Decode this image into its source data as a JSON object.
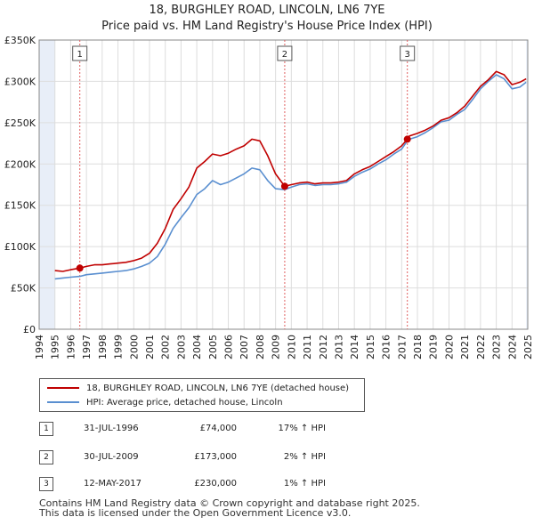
{
  "header": {
    "title": "18, BURGHLEY ROAD, LINCOLN, LN6 7YE",
    "subtitle": "Price paid vs. HM Land Registry's House Price Index (HPI)"
  },
  "chart_data": {
    "type": "line",
    "title": "18, BURGHLEY ROAD, LINCOLN, LN6 7YE",
    "subtitle": "Price paid vs. HM Land Registry's House Price Index (HPI)",
    "xlabel": "",
    "ylabel": "",
    "xlim": [
      1994,
      2025
    ],
    "ylim": [
      0,
      350000
    ],
    "xticks": [
      1994,
      1995,
      1996,
      1997,
      1998,
      1999,
      2000,
      2001,
      2002,
      2003,
      2004,
      2005,
      2006,
      2007,
      2008,
      2009,
      2010,
      2011,
      2012,
      2013,
      2014,
      2015,
      2016,
      2017,
      2018,
      2019,
      2020,
      2021,
      2022,
      2023,
      2024,
      2025
    ],
    "yticks": [
      {
        "value": 0,
        "label": "£0"
      },
      {
        "value": 50000,
        "label": "£50K"
      },
      {
        "value": 100000,
        "label": "£100K"
      },
      {
        "value": 150000,
        "label": "£150K"
      },
      {
        "value": 200000,
        "label": "£200K"
      },
      {
        "value": 250000,
        "label": "£250K"
      },
      {
        "value": 300000,
        "label": "£300K"
      },
      {
        "value": 350000,
        "label": "£350K"
      }
    ],
    "grid": true,
    "colors": {
      "property": "#c00000",
      "hpi": "#5a8fd0",
      "grid": "#dddddd",
      "shade": "#e8eef8",
      "marker": "#e06060"
    },
    "series": [
      {
        "name": "18, BURGHLEY ROAD, LINCOLN, LN6 7YE (detached house)",
        "color": "#c00000",
        "x": [
          1995.0,
          1995.5,
          1996.0,
          1996.58,
          1997.0,
          1997.5,
          1998.0,
          1998.5,
          1999.0,
          1999.5,
          2000.0,
          2000.5,
          2001.0,
          2001.5,
          2002.0,
          2002.5,
          2003.0,
          2003.5,
          2004.0,
          2004.5,
          2005.0,
          2005.5,
          2006.0,
          2006.5,
          2007.0,
          2007.5,
          2008.0,
          2008.5,
          2009.0,
          2009.58,
          2010.0,
          2010.5,
          2011.0,
          2011.5,
          2012.0,
          2012.5,
          2013.0,
          2013.5,
          2014.0,
          2014.5,
          2015.0,
          2015.5,
          2016.0,
          2016.5,
          2017.0,
          2017.36,
          2017.5,
          2018.0,
          2018.5,
          2019.0,
          2019.5,
          2020.0,
          2020.5,
          2021.0,
          2021.5,
          2022.0,
          2022.5,
          2023.0,
          2023.5,
          2024.0,
          2024.5,
          2024.9
        ],
        "y": [
          71000,
          70000,
          72000,
          74000,
          76000,
          78000,
          78000,
          79000,
          80000,
          81000,
          83000,
          86000,
          92000,
          104000,
          122000,
          145000,
          158000,
          172000,
          195000,
          203000,
          212000,
          210000,
          213000,
          218000,
          222000,
          230000,
          228000,
          210000,
          188000,
          173000,
          175000,
          177000,
          178000,
          176000,
          177000,
          177000,
          178000,
          180000,
          188000,
          193000,
          197000,
          203000,
          209000,
          215000,
          222000,
          230000,
          234000,
          237000,
          241000,
          246000,
          253000,
          256000,
          262000,
          270000,
          282000,
          294000,
          302000,
          312000,
          308000,
          296000,
          299000,
          303000
        ]
      },
      {
        "name": "HPI: Average price, detached house, Lincoln",
        "color": "#5a8fd0",
        "x": [
          1995.0,
          1995.5,
          1996.0,
          1996.58,
          1997.0,
          1997.5,
          1998.0,
          1998.5,
          1999.0,
          1999.5,
          2000.0,
          2000.5,
          2001.0,
          2001.5,
          2002.0,
          2002.5,
          2003.0,
          2003.5,
          2004.0,
          2004.5,
          2005.0,
          2005.5,
          2006.0,
          2006.5,
          2007.0,
          2007.5,
          2008.0,
          2008.5,
          2009.0,
          2009.58,
          2010.0,
          2010.5,
          2011.0,
          2011.5,
          2012.0,
          2012.5,
          2013.0,
          2013.5,
          2014.0,
          2014.5,
          2015.0,
          2015.5,
          2016.0,
          2016.5,
          2017.0,
          2017.36,
          2017.5,
          2018.0,
          2018.5,
          2019.0,
          2019.5,
          2020.0,
          2020.5,
          2021.0,
          2021.5,
          2022.0,
          2022.5,
          2023.0,
          2023.5,
          2024.0,
          2024.5,
          2024.9
        ],
        "y": [
          61000,
          62000,
          63000,
          64000,
          66000,
          67000,
          68000,
          69000,
          70000,
          71000,
          73000,
          76000,
          80000,
          88000,
          103000,
          122000,
          135000,
          147000,
          163000,
          170000,
          180000,
          175000,
          178000,
          183000,
          188000,
          195000,
          193000,
          180000,
          170000,
          169000,
          172000,
          175000,
          176000,
          174000,
          175000,
          175000,
          176000,
          178000,
          185000,
          190000,
          194000,
          200000,
          205000,
          212000,
          218000,
          228000,
          230000,
          233000,
          238000,
          244000,
          251000,
          253000,
          260000,
          266000,
          278000,
          291000,
          300000,
          308000,
          303000,
          291000,
          293000,
          299000
        ]
      }
    ],
    "transactions": [
      {
        "label": "1",
        "x": 1996.58,
        "date": "31-JUL-1996",
        "price": 74000,
        "price_text": "£74,000",
        "hpi_text": "17% ↑ HPI"
      },
      {
        "label": "2",
        "x": 2009.58,
        "date": "30-JUL-2009",
        "price": 173000,
        "price_text": "£173,000",
        "hpi_text": "2% ↑ HPI"
      },
      {
        "label": "3",
        "x": 2017.36,
        "date": "12-MAY-2017",
        "price": 230000,
        "price_text": "£230,000",
        "hpi_text": "1% ↑ HPI"
      }
    ]
  },
  "legend": {
    "property_label": "18, BURGHLEY ROAD, LINCOLN, LN6 7YE (detached house)",
    "hpi_label": "HPI: Average price, detached house, Lincoln"
  },
  "footer": {
    "line1": "Contains HM Land Registry data © Crown copyright and database right 2025.",
    "line2": "This data is licensed under the Open Government Licence v3.0."
  }
}
